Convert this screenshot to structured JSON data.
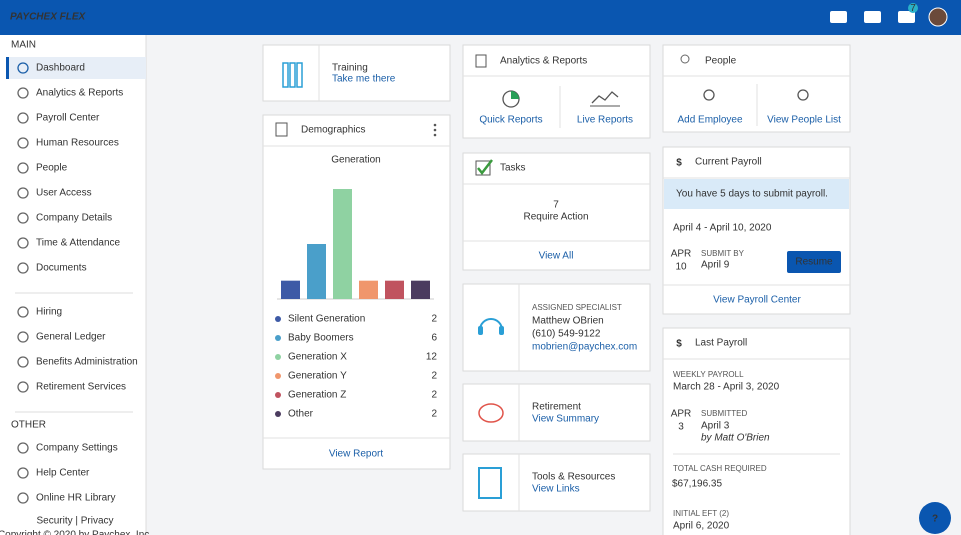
{
  "header": {
    "logo": "PAYCHEX FLEX",
    "badge": "7"
  },
  "sidebar": {
    "sections": [
      {
        "label": "MAIN",
        "items": [
          "Dashboard",
          "Analytics & Reports",
          "Payroll Center",
          "Human Resources",
          "People",
          "User Access",
          "Company Details",
          "Time & Attendance",
          "Documents"
        ]
      },
      {
        "items": [
          "Hiring",
          "General Ledger",
          "Benefits Administration",
          "Retirement Services"
        ]
      },
      {
        "label": "OTHER",
        "items": [
          "Company Settings",
          "Help Center",
          "Online HR Library"
        ]
      }
    ],
    "footer": [
      "Security | Privacy",
      "Copyright © 2020 by Paychex, Inc."
    ]
  },
  "training": {
    "title": "Training",
    "link": "Take me there"
  },
  "demographics": {
    "title": "Demographics",
    "link": "View Report",
    "chart": {
      "type": "bar",
      "title": "Generation",
      "categories": [
        "Silent Generation",
        "Baby Boomers",
        "Generation X",
        "Generation Y",
        "Generation Z",
        "Other"
      ],
      "values": [
        2,
        6,
        12,
        2,
        2,
        2
      ],
      "colors": [
        "#3d5aa6",
        "#4a9fca",
        "#8fd2a2",
        "#f0966c",
        "#c0535f",
        "#4b3c5f"
      ]
    }
  },
  "analytics": {
    "title": "Analytics & Reports",
    "links": [
      "Quick Reports",
      "Live Reports"
    ]
  },
  "tasks": {
    "title": "Tasks",
    "count": 7,
    "count_label": "Require Action",
    "link": "View All"
  },
  "specialist": {
    "label": "ASSIGNED SPECIALIST",
    "name": "Matthew OBrien",
    "phone": "(610) 549-9122",
    "email": "mobrien@paychex.com"
  },
  "retirement": {
    "title": "Retirement",
    "link": "View Summary"
  },
  "tools": {
    "title": "Tools & Resources",
    "link": "View Links"
  },
  "people": {
    "title": "People",
    "links": [
      "Add Employee",
      "View People List"
    ]
  },
  "current_payroll": {
    "title": "Current Payroll",
    "alert": "You have 5 days to submit payroll.",
    "period": "April 4 - April 10, 2020",
    "month": "APR",
    "day": 10,
    "submit_label": "SUBMIT BY",
    "submit_date": "April 9",
    "button": "Resume",
    "link": "View Payroll Center"
  },
  "last_payroll": {
    "title": "Last Payroll",
    "frequency": "WEEKLY PAYROLL",
    "period": "March 28 - April 3, 2020",
    "month": "APR",
    "day": 3,
    "status": "SUBMITTED",
    "submitted_date": "April 3",
    "submitted_by": "by  Matt O'Brien",
    "cash_label": "TOTAL CASH REQUIRED",
    "cash": "$67,196.35",
    "eft_label": "INITIAL EFT (2)",
    "eft_date": "April 6, 2020"
  },
  "help": "?"
}
